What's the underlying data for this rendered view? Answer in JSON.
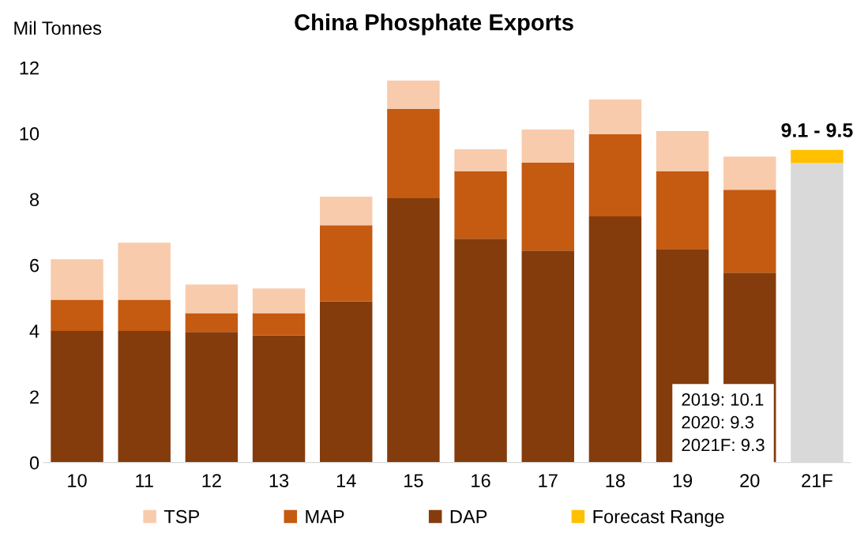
{
  "chart_data": {
    "type": "bar",
    "title": "China Phosphate Exports",
    "ylabel": "Mil Tonnes",
    "stacked": true,
    "categories": [
      "10",
      "11",
      "12",
      "13",
      "14",
      "15",
      "16",
      "17",
      "18",
      "19",
      "20",
      "21F"
    ],
    "series": [
      {
        "name": "DAP",
        "color": "#843c0c",
        "values": [
          4.0,
          4.0,
          3.97,
          3.87,
          4.9,
          8.03,
          6.8,
          6.44,
          7.48,
          6.49,
          5.77,
          null
        ]
      },
      {
        "name": "MAP",
        "color": "#c55a11",
        "values": [
          0.95,
          0.95,
          0.57,
          0.67,
          2.31,
          2.72,
          2.05,
          2.67,
          2.5,
          2.36,
          2.52,
          null
        ]
      },
      {
        "name": "TSP",
        "color": "#f8cbad",
        "values": [
          1.23,
          1.73,
          0.87,
          0.75,
          0.87,
          0.86,
          0.67,
          1.01,
          1.05,
          1.22,
          1.01,
          null
        ]
      },
      {
        "color": "#d9d9d9",
        "values": [
          null,
          null,
          null,
          null,
          null,
          null,
          null,
          null,
          null,
          null,
          null,
          9.1
        ]
      },
      {
        "name": "Forecast Range",
        "color": "#ffc000",
        "values": [
          null,
          null,
          null,
          null,
          null,
          null,
          null,
          null,
          null,
          null,
          null,
          0.4
        ]
      }
    ],
    "ylim": [
      0,
      12
    ],
    "yticks": [
      0,
      2,
      4,
      6,
      8,
      10,
      12
    ],
    "grid": false,
    "legend": "bottom",
    "annotations": [
      {
        "text": "9.1 - 9.5",
        "x": "21F",
        "y": 9.5
      },
      "2019: 10.1\n2020: 9.3\n2021F: 9.3"
    ]
  }
}
